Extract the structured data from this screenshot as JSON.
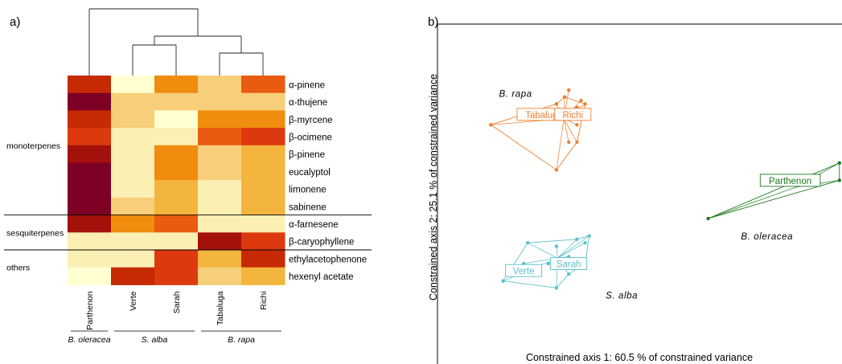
{
  "panel_a_label": "a)",
  "panel_b_label": "b)",
  "colors": {
    "ramp": [
      "#FFFFD2",
      "#FCEFB4",
      "#F7CF7A",
      "#F3B53E",
      "#F08C0E",
      "#E95B10",
      "#DC3A0E",
      "#C62A05",
      "#A4100B",
      "#7F0025"
    ],
    "b_rapa": "#EE7F2E",
    "s_alba": "#5BBFCB",
    "b_oleracea": "#1E7A1E"
  },
  "chart_data": [
    {
      "type": "heatmap",
      "title": "",
      "columns": [
        "Parthenon",
        "Verte",
        "Sarah",
        "Tabaluga",
        "Richi"
      ],
      "rows": [
        "α-pinene",
        "α-thujene",
        "β-myrcene",
        "β-ocimene",
        "β-pinene",
        "eucalyptol",
        "limonene",
        "sabinene",
        "α-farnesene",
        "β-caryophyllene",
        "ethylacetophenone",
        "hexenyl acetate"
      ],
      "values": [
        [
          7,
          0,
          4,
          2,
          5
        ],
        [
          9,
          2,
          2,
          2,
          2
        ],
        [
          7,
          2,
          0,
          4,
          4
        ],
        [
          6,
          1,
          1,
          5,
          6
        ],
        [
          8,
          1,
          4,
          2,
          3
        ],
        [
          9,
          1,
          4,
          2,
          3
        ],
        [
          9,
          1,
          3,
          1,
          3
        ],
        [
          9,
          2,
          3,
          1,
          3
        ],
        [
          8,
          4,
          5,
          1,
          1
        ],
        [
          1,
          1,
          1,
          8,
          6
        ],
        [
          1,
          1,
          6,
          3,
          7
        ],
        [
          0,
          7,
          6,
          2,
          3
        ]
      ],
      "value_scale": "relative intensity level 0 (low, pale yellow) to 9 (high, dark red)",
      "row_groups": [
        {
          "label": "monoterpenes",
          "rows": [
            0,
            7
          ]
        },
        {
          "label": "sesquiterpenes",
          "rows": [
            8,
            9
          ]
        },
        {
          "label": "others",
          "rows": [
            10,
            11
          ]
        }
      ],
      "species_groups": [
        {
          "label": "B. oleracea",
          "columns": [
            0,
            0
          ]
        },
        {
          "label": "S. alba",
          "columns": [
            1,
            2
          ]
        },
        {
          "label": "B. rapa",
          "columns": [
            3,
            4
          ]
        }
      ],
      "dendrogram": [
        {
          "merge": [
            "Verte",
            "Sarah"
          ]
        },
        {
          "merge": [
            "Tabaluga",
            "Richi"
          ]
        },
        {
          "merge": [
            "Verte+Sarah",
            "Tabaluga+Richi"
          ]
        },
        {
          "merge": [
            "Parthenon",
            "Verte+Sarah+Tabaluga+Richi"
          ]
        }
      ]
    },
    {
      "type": "scatter",
      "title": "",
      "xlabel": "Constrained axis 1: 60.5 % of constrained variance",
      "ylabel": "Constrained axis 2: 25.1 % of constrained variance",
      "xlim": [
        0,
        100
      ],
      "ylim": [
        0,
        100
      ],
      "grid": false,
      "axis_ticks": false,
      "groups": [
        {
          "name": "B. rapa",
          "color": "#EE7F2E",
          "points": [
            [
              13,
              71
            ],
            [
              29,
              77
            ],
            [
              29,
              58
            ],
            [
              31,
              79
            ],
            [
              32,
              66
            ],
            [
              32,
              81
            ],
            [
              34,
              76
            ],
            [
              34,
              71
            ],
            [
              34,
              66
            ],
            [
              35,
              78
            ],
            [
              36,
              77
            ]
          ],
          "hull": [
            [
              13,
              71
            ],
            [
              29,
              77
            ],
            [
              31,
              79
            ],
            [
              36,
              77
            ],
            [
              34,
              66
            ],
            [
              29,
              58
            ],
            [
              13,
              71
            ]
          ],
          "labels": [
            {
              "text": "Tabaluga",
              "x": 26,
              "y": 74
            },
            {
              "text": "Richi",
              "x": 33,
              "y": 74
            }
          ]
        },
        {
          "name": "S. alba",
          "color": "#5BBFCB",
          "points": [
            [
              16,
              26
            ],
            [
              21,
              31
            ],
            [
              22,
              37
            ],
            [
              27,
              31
            ],
            [
              29,
              24
            ],
            [
              29,
              36
            ],
            [
              32,
              28
            ],
            [
              32,
              33
            ],
            [
              34,
              38
            ],
            [
              36,
              37
            ],
            [
              36,
              31
            ],
            [
              37,
              39
            ]
          ],
          "hull": [
            [
              16,
              26
            ],
            [
              22,
              37
            ],
            [
              34,
              38
            ],
            [
              37,
              39
            ],
            [
              36,
              31
            ],
            [
              32,
              28
            ],
            [
              29,
              24
            ],
            [
              16,
              26
            ]
          ],
          "labels": [
            {
              "text": "Verte",
              "x": 21,
              "y": 29
            },
            {
              "text": "Sarah",
              "x": 32,
              "y": 31
            }
          ]
        },
        {
          "name": "B. oleracea",
          "color": "#1E7A1E",
          "points": [
            [
              66,
              44
            ],
            [
              98,
              60
            ],
            [
              98,
              55
            ]
          ],
          "hull": [
            [
              66,
              44
            ],
            [
              98,
              60
            ],
            [
              98,
              55
            ],
            [
              66,
              44
            ]
          ],
          "labels": [
            {
              "text": "Parthenon",
              "x": 86,
              "y": 55
            }
          ]
        }
      ],
      "group_names": [
        {
          "text": "B. rapa",
          "x": 15,
          "y": 79
        },
        {
          "text": "S. alba",
          "x": 41,
          "y": 21
        },
        {
          "text": "B. oleracea",
          "x": 74,
          "y": 38
        }
      ]
    }
  ]
}
